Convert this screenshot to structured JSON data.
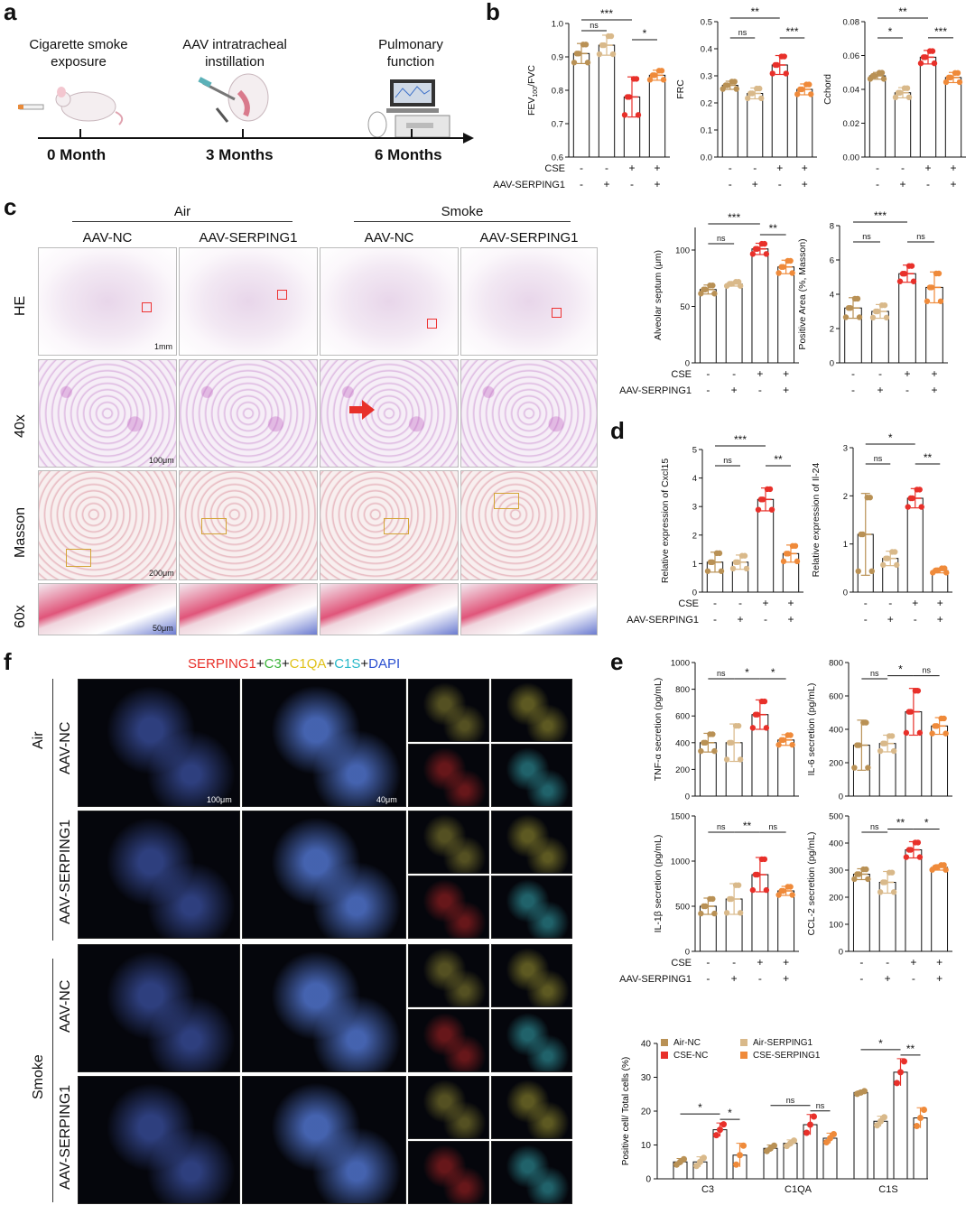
{
  "panels": {
    "a": "a",
    "b": "b",
    "c": "c",
    "d": "d",
    "e": "e",
    "f": "f"
  },
  "timeline": {
    "steps": [
      "Cigarette smoke exposure",
      "AAV intratracheal instillation",
      "Pulmonary function"
    ],
    "times": [
      "0 Month",
      "3 Months",
      "6 Months"
    ]
  },
  "histology": {
    "groups": [
      "Air",
      "Smoke"
    ],
    "columns": [
      "AAV-NC",
      "AAV-SERPING1",
      "AAV-NC",
      "AAV-SERPING1"
    ],
    "rows": [
      "HE",
      "40x",
      "Masson",
      "60x"
    ],
    "scalebars": [
      "1mm",
      "100μm",
      "200μm",
      "50μm"
    ]
  },
  "if": {
    "title_parts": [
      {
        "text": "SERPING1",
        "color": "#e8302a"
      },
      {
        "text": "+",
        "color": "#111111"
      },
      {
        "text": "C3",
        "color": "#3db53d"
      },
      {
        "text": "+",
        "color": "#111111"
      },
      {
        "text": "C1QA",
        "color": "#e0c21a"
      },
      {
        "text": "+",
        "color": "#111111"
      },
      {
        "text": "C1S",
        "color": "#27b8c8"
      },
      {
        "text": "+",
        "color": "#111111"
      },
      {
        "text": "DAPI",
        "color": "#2a4fd0"
      }
    ],
    "groups": [
      "Air",
      "Smoke"
    ],
    "rows": [
      "AAV-NC",
      "AAV-SERPING1",
      "AAV-NC",
      "AAV-SERPING1"
    ],
    "scalebars": [
      "100μm",
      "40μm"
    ]
  },
  "colors": {
    "air_nc": "#b99155",
    "air_serping1": "#d9b98a",
    "cse_nc": "#e8302a",
    "cse_serping1": "#ef8a3a"
  },
  "treatments": {
    "cse": [
      "-",
      "-",
      "+",
      "+"
    ],
    "aav": [
      "-",
      "+",
      "-",
      "+"
    ],
    "row_labels": [
      "CSE",
      "AAV-SERPING1"
    ]
  },
  "chart_data": [
    {
      "id": "fev",
      "type": "bar",
      "ylabel": "FEV100/FVC",
      "ylim": [
        0.6,
        1.0
      ],
      "ticks": [
        "0.6",
        "0.7",
        "0.8",
        "0.9",
        "1.0"
      ],
      "values": [
        0.91,
        0.935,
        0.78,
        0.845
      ],
      "errors": [
        0.03,
        0.03,
        0.06,
        0.015
      ],
      "sig": [
        {
          "a": 0,
          "b": 2,
          "label": "***"
        },
        {
          "a": 0,
          "b": 1,
          "label": "ns"
        },
        {
          "a": 2,
          "b": 3,
          "label": "*"
        }
      ]
    },
    {
      "id": "frc",
      "type": "bar",
      "ylabel": "FRC",
      "ylim": [
        0,
        0.5
      ],
      "ticks": [
        "0.0",
        "0.1",
        "0.2",
        "0.3",
        "0.4",
        "0.5"
      ],
      "values": [
        0.265,
        0.235,
        0.34,
        0.25
      ],
      "errors": [
        0.015,
        0.02,
        0.035,
        0.02
      ],
      "sig": [
        {
          "a": 0,
          "b": 2,
          "label": "**"
        },
        {
          "a": 0,
          "b": 1,
          "label": "ns"
        },
        {
          "a": 2,
          "b": 3,
          "label": "***"
        }
      ]
    },
    {
      "id": "cchord",
      "type": "bar",
      "ylabel": "Cchord",
      "ylim": [
        0,
        0.08
      ],
      "ticks": [
        "0.00",
        "0.02",
        "0.04",
        "0.06",
        "0.08"
      ],
      "values": [
        0.048,
        0.038,
        0.059,
        0.047
      ],
      "errors": [
        0.002,
        0.003,
        0.004,
        0.003
      ],
      "sig": [
        {
          "a": 0,
          "b": 2,
          "label": "**"
        },
        {
          "a": 0,
          "b": 1,
          "label": "*"
        },
        {
          "a": 2,
          "b": 3,
          "label": "***"
        }
      ]
    },
    {
      "id": "septum",
      "type": "bar",
      "ylabel": "Alveolar septum (μm)",
      "ylim": [
        0,
        120
      ],
      "ticks": [
        "0",
        "50",
        "100"
      ],
      "values": [
        65,
        70,
        101,
        85
      ],
      "errors": [
        4,
        2,
        5,
        6
      ],
      "sig": [
        {
          "a": 0,
          "b": 2,
          "label": "***"
        },
        {
          "a": 0,
          "b": 1,
          "label": "ns"
        },
        {
          "a": 2,
          "b": 3,
          "label": "**"
        }
      ]
    },
    {
      "id": "masson",
      "type": "bar",
      "ylabel": "Positive Area (%, Masson)",
      "ylim": [
        0,
        8
      ],
      "ticks": [
        "0",
        "2",
        "4",
        "6",
        "8"
      ],
      "values": [
        3.2,
        3.0,
        5.2,
        4.4
      ],
      "errors": [
        0.6,
        0.4,
        0.5,
        0.9
      ],
      "sig": [
        {
          "a": 0,
          "b": 2,
          "label": "***"
        },
        {
          "a": 0,
          "b": 1,
          "label": "ns"
        },
        {
          "a": 2,
          "b": 3,
          "label": "ns"
        }
      ]
    },
    {
      "id": "cxcl15",
      "type": "bar",
      "ylabel": "Relative expression of Cxcl15",
      "ylim": [
        0,
        5
      ],
      "ticks": [
        "0",
        "1",
        "2",
        "3",
        "4",
        "5"
      ],
      "values": [
        1.05,
        1.05,
        3.25,
        1.35
      ],
      "errors": [
        0.35,
        0.25,
        0.4,
        0.3
      ],
      "sig": [
        {
          "a": 0,
          "b": 2,
          "label": "***"
        },
        {
          "a": 0,
          "b": 1,
          "label": "ns"
        },
        {
          "a": 2,
          "b": 3,
          "label": "**"
        }
      ]
    },
    {
      "id": "il24",
      "type": "bar",
      "ylabel": "Relative expression of Il-24",
      "ylim": [
        0,
        3
      ],
      "ticks": [
        "0",
        "1",
        "2",
        "3"
      ],
      "values": [
        1.2,
        0.7,
        1.95,
        0.45
      ],
      "errors": [
        0.85,
        0.15,
        0.2,
        0.05
      ],
      "sig": [
        {
          "a": 0,
          "b": 2,
          "label": "*"
        },
        {
          "a": 0,
          "b": 1,
          "label": "ns"
        },
        {
          "a": 2,
          "b": 3,
          "label": "**"
        }
      ]
    },
    {
      "id": "tnf",
      "type": "bar",
      "ylabel": "TNF-α secretion (pg/mL)",
      "ylim": [
        0,
        1000
      ],
      "ticks": [
        "0",
        "200",
        "400",
        "600",
        "800",
        "1000"
      ],
      "values": [
        400,
        400,
        610,
        420
      ],
      "errors": [
        70,
        140,
        110,
        40
      ],
      "sig": [
        {
          "a": 0,
          "b": 1,
          "label": "ns"
        },
        {
          "a": 1,
          "b": 2,
          "label": "*"
        },
        {
          "a": 2,
          "b": 3,
          "label": "*"
        }
      ]
    },
    {
      "id": "il6",
      "type": "bar",
      "ylabel": "IL-6 secretion (pg/mL)",
      "ylim": [
        0,
        800
      ],
      "ticks": [
        "0",
        "200",
        "400",
        "600",
        "800"
      ],
      "values": [
        305,
        315,
        505,
        420
      ],
      "errors": [
        150,
        50,
        140,
        50
      ],
      "sig": [
        {
          "a": 0,
          "b": 1,
          "label": "ns"
        },
        {
          "a": 1,
          "b": 2,
          "label": "*"
        },
        {
          "a": 2,
          "b": 3,
          "label": "ns"
        }
      ]
    },
    {
      "id": "il1b",
      "type": "bar",
      "ylabel": "IL-1β secretion (pg/mL)",
      "ylim": [
        0,
        1500
      ],
      "ticks": [
        "0",
        "500",
        "1000",
        "1500"
      ],
      "values": [
        500,
        580,
        850,
        670
      ],
      "errors": [
        90,
        170,
        190,
        50
      ],
      "sig": [
        {
          "a": 0,
          "b": 1,
          "label": "ns"
        },
        {
          "a": 1,
          "b": 2,
          "label": "**"
        },
        {
          "a": 2,
          "b": 3,
          "label": "ns"
        }
      ]
    },
    {
      "id": "ccl2",
      "type": "bar",
      "ylabel": "CCL-2 secretion (pg/mL)",
      "ylim": [
        0,
        500
      ],
      "ticks": [
        "0",
        "100",
        "200",
        "300",
        "400",
        "500"
      ],
      "values": [
        285,
        255,
        375,
        310
      ],
      "errors": [
        20,
        40,
        30,
        10
      ],
      "sig": [
        {
          "a": 0,
          "b": 1,
          "label": "ns"
        },
        {
          "a": 1,
          "b": 2,
          "label": "**"
        },
        {
          "a": 2,
          "b": 3,
          "label": "*"
        }
      ]
    },
    {
      "id": "positive",
      "type": "bar",
      "ylabel": "Positive cell/ Total cells (%)",
      "ylim": [
        0,
        40
      ],
      "ticks": [
        "0",
        "10",
        "20",
        "30",
        "40"
      ],
      "categories": [
        "C3",
        "C1QA",
        "C1S"
      ],
      "series": [
        {
          "name": "Air-NC",
          "values": [
            5,
            9,
            25.5
          ]
        },
        {
          "name": "Air-SERPING1",
          "values": [
            5,
            10.5,
            17
          ]
        },
        {
          "name": "CSE-NC",
          "values": [
            14.5,
            16,
            31.5
          ]
        },
        {
          "name": "CSE-SERPING1",
          "values": [
            7,
            12,
            18
          ]
        }
      ],
      "errors": [
        [
          1,
          1,
          0.5
        ],
        [
          1.5,
          1,
          1.5
        ],
        [
          2,
          3,
          4
        ],
        [
          3.5,
          1.5,
          3
        ]
      ],
      "sig": [
        {
          "cat": 0,
          "a": 0,
          "b": 2,
          "label": "*"
        },
        {
          "cat": 0,
          "a": 2,
          "b": 3,
          "label": "*"
        },
        {
          "cat": 1,
          "a": 0,
          "b": 2,
          "label": "ns"
        },
        {
          "cat": 1,
          "a": 2,
          "b": 3,
          "label": "ns"
        },
        {
          "cat": 2,
          "a": 0,
          "b": 2,
          "label": "*"
        },
        {
          "cat": 2,
          "a": 2,
          "b": 3,
          "label": "**"
        }
      ]
    }
  ]
}
